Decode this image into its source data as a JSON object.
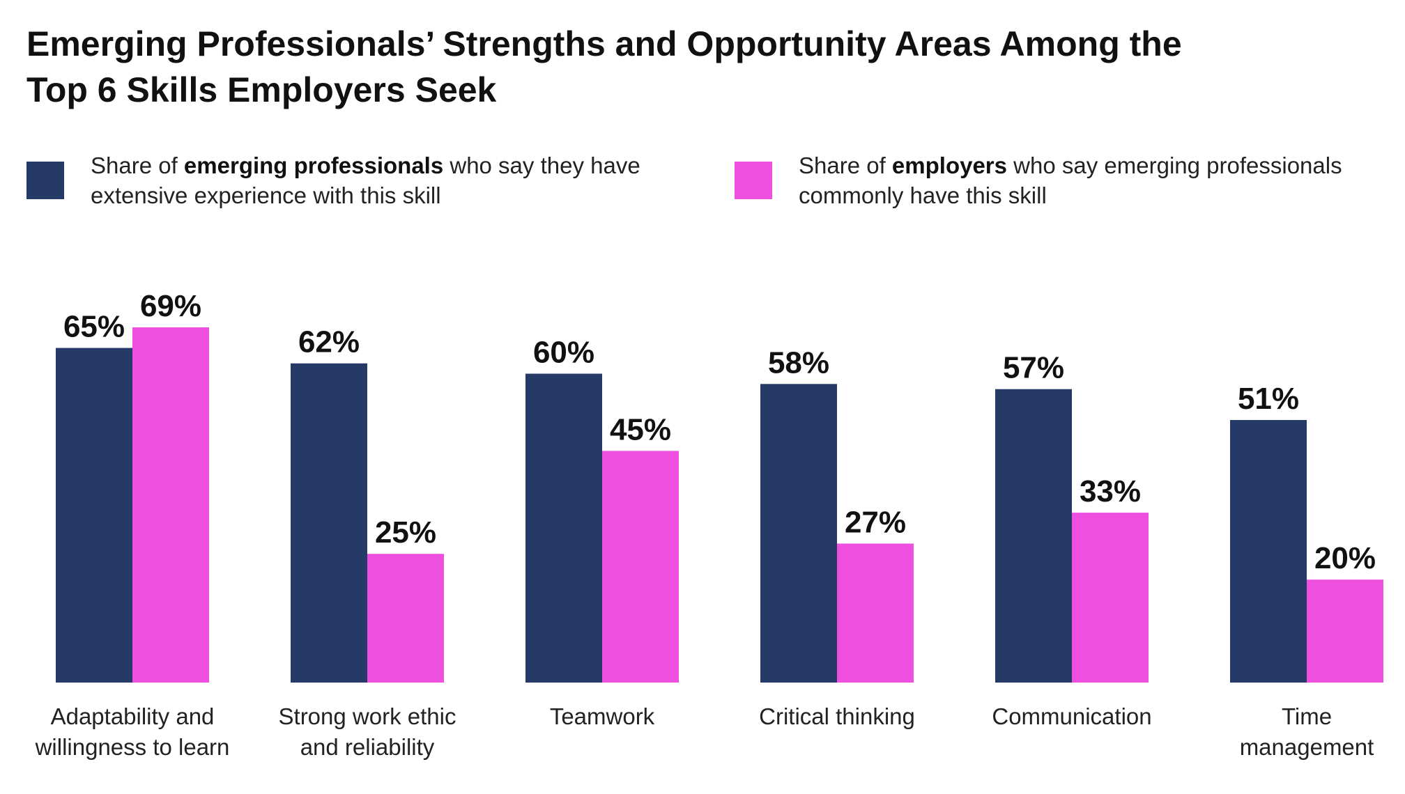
{
  "title_lines": [
    "Emerging Professionals’ Strengths and Opportunity Areas Among the",
    "Top 6 Skills Employers Seek"
  ],
  "legend": [
    {
      "color": "#253a66",
      "prefix": "Share of ",
      "bold": "emerging professionals",
      "suffix": " who say they have",
      "line2": "extensive experience with this skill"
    },
    {
      "color": "#ee4fdf",
      "prefix": "Share of ",
      "bold": "employers",
      "suffix": " who say emerging professionals",
      "line2": "commonly have this skill"
    }
  ],
  "chart_data": {
    "type": "bar",
    "title": "Emerging Professionals’ Strengths and Opportunity Areas Among the Top 6 Skills Employers Seek",
    "categories": [
      [
        "Adaptability and",
        "willingness to learn"
      ],
      [
        "Strong work ethic",
        "and reliability"
      ],
      [
        "Teamwork"
      ],
      [
        "Critical thinking"
      ],
      [
        "Communication"
      ],
      [
        "Time",
        "management"
      ]
    ],
    "series": [
      {
        "name": "Share of emerging professionals who say they have extensive experience with this skill",
        "color": "#253a66",
        "values": [
          65,
          62,
          60,
          58,
          57,
          51
        ],
        "labels": [
          "65%",
          "62%",
          "60%",
          "58%",
          "57%",
          "51%"
        ]
      },
      {
        "name": "Share of employers who say emerging professionals commonly have this skill",
        "color": "#ee4fdf",
        "values": [
          69,
          25,
          45,
          27,
          33,
          20
        ],
        "labels": [
          "69%",
          "25%",
          "45%",
          "27%",
          "33%",
          "20%"
        ]
      }
    ],
    "ylim": [
      0,
      69
    ],
    "grid": false,
    "legend_position": "top"
  }
}
